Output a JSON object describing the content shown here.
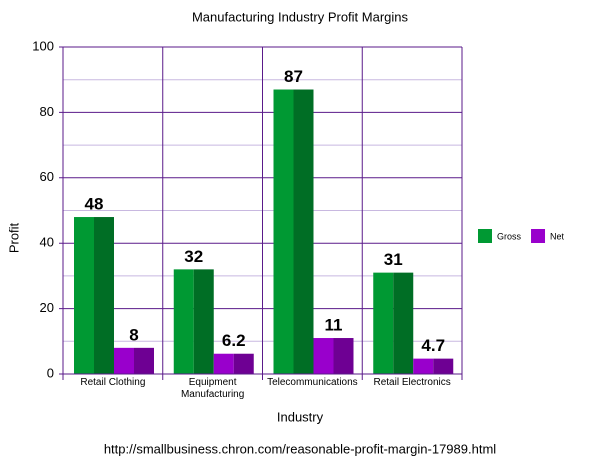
{
  "chart_data": {
    "type": "bar",
    "title": "Manufacturing Industry Profit Margins",
    "x_label": "Industry",
    "y_label": "Profit",
    "categories": [
      "Retail Clothing",
      "Equipment Manufacturing",
      "Telecommunications",
      "Retail Electronics"
    ],
    "series": [
      {
        "name": "Gross",
        "color": "#009933",
        "values": [
          48,
          32,
          87,
          31
        ]
      },
      {
        "name": "Net",
        "color": "#9900cc",
        "values": [
          8,
          6.2,
          11,
          4.7
        ]
      }
    ],
    "ylim": [
      0,
      100
    ],
    "yticks": [
      0,
      20,
      40,
      60,
      80,
      100
    ],
    "minor_yticks": [
      10,
      30,
      50,
      70,
      90
    ],
    "grid": true,
    "legend": "right",
    "source": "http://smallbusiness.chron.com/reasonable-profit-margin-17989.html"
  }
}
